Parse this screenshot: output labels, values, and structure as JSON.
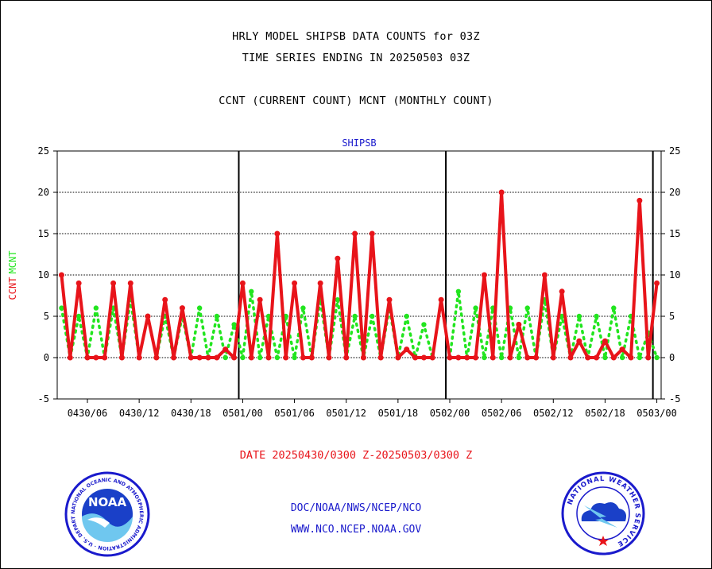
{
  "header": {
    "line1": "HRLY MODEL SHIPSB DATA COUNTS for 03Z",
    "line2": "TIME SERIES ENDING IN 20250503 03Z",
    "line3": "CCNT (CURRENT COUNT) MCNT (MONTHLY COUNT)"
  },
  "footer": {
    "date_range": "DATE 20250430/0300 Z-20250503/0300 Z",
    "org": "DOC/NOAA/NWS/NCEP/NCO",
    "url": "WWW.NCO.NCEP.NOAA.GOV"
  },
  "logos": {
    "noaa": "NOAA",
    "noaa_ring": "NATIONAL OCEANIC AND ATMOSPHERIC ADMINISTRATION · U.S. DEPARTMENT OF COMMERCE",
    "nws_ring": "NATIONAL WEATHER SERVICE"
  },
  "chart_data": {
    "type": "line",
    "title": "SHIPSB",
    "ylabel_left": "CCNT",
    "ylabel_right": "MCNT",
    "ylim": [
      -5,
      25
    ],
    "y_ticks": [
      -5,
      0,
      5,
      10,
      15,
      20,
      25
    ],
    "x_ticks": [
      "0430/06",
      "0430/12",
      "0430/18",
      "0501/00",
      "0501/06",
      "0501/12",
      "0501/18",
      "0502/00",
      "0502/06",
      "0502/12",
      "0502/18",
      "0503/00"
    ],
    "x_tick_hours": [
      3,
      9,
      15,
      21,
      27,
      33,
      39,
      45,
      51,
      57,
      63,
      69
    ],
    "day_boundaries_hours": [
      21,
      45,
      69
    ],
    "grid_y": [
      5,
      10,
      15,
      20
    ],
    "colors": {
      "ccnt": "#e8141a",
      "mcnt": "#22e51f",
      "title": "#1a1acc"
    },
    "series": [
      {
        "name": "CCNT",
        "values": [
          10,
          0,
          9,
          0,
          0,
          0,
          9,
          0,
          9,
          0,
          5,
          0,
          7,
          0,
          6,
          0,
          0,
          0,
          0,
          1,
          0,
          9,
          0,
          7,
          0,
          15,
          0,
          9,
          0,
          0,
          9,
          0,
          12,
          0,
          15,
          0,
          15,
          0,
          7,
          0,
          1,
          0,
          0,
          0,
          7,
          0,
          0,
          0,
          0,
          10,
          0,
          20,
          0,
          4,
          0,
          0,
          10,
          0,
          8,
          0,
          2,
          0,
          0,
          2,
          0,
          1,
          0,
          19,
          0,
          9
        ]
      },
      {
        "name": "MCNT",
        "values": [
          6,
          0,
          5,
          0,
          6,
          0,
          6,
          0,
          7,
          0,
          5,
          0,
          5,
          0,
          5,
          0,
          6,
          0,
          5,
          0,
          4,
          0,
          8,
          0,
          5,
          0,
          5,
          0,
          6,
          0,
          7,
          0,
          7,
          0,
          5,
          0,
          5,
          0,
          6,
          0,
          5,
          0,
          4,
          0,
          7,
          0,
          8,
          0,
          6,
          0,
          6,
          0,
          6,
          0,
          6,
          0,
          7,
          0,
          5,
          0,
          5,
          0,
          5,
          0,
          6,
          0,
          5,
          0,
          3,
          0
        ]
      }
    ]
  }
}
